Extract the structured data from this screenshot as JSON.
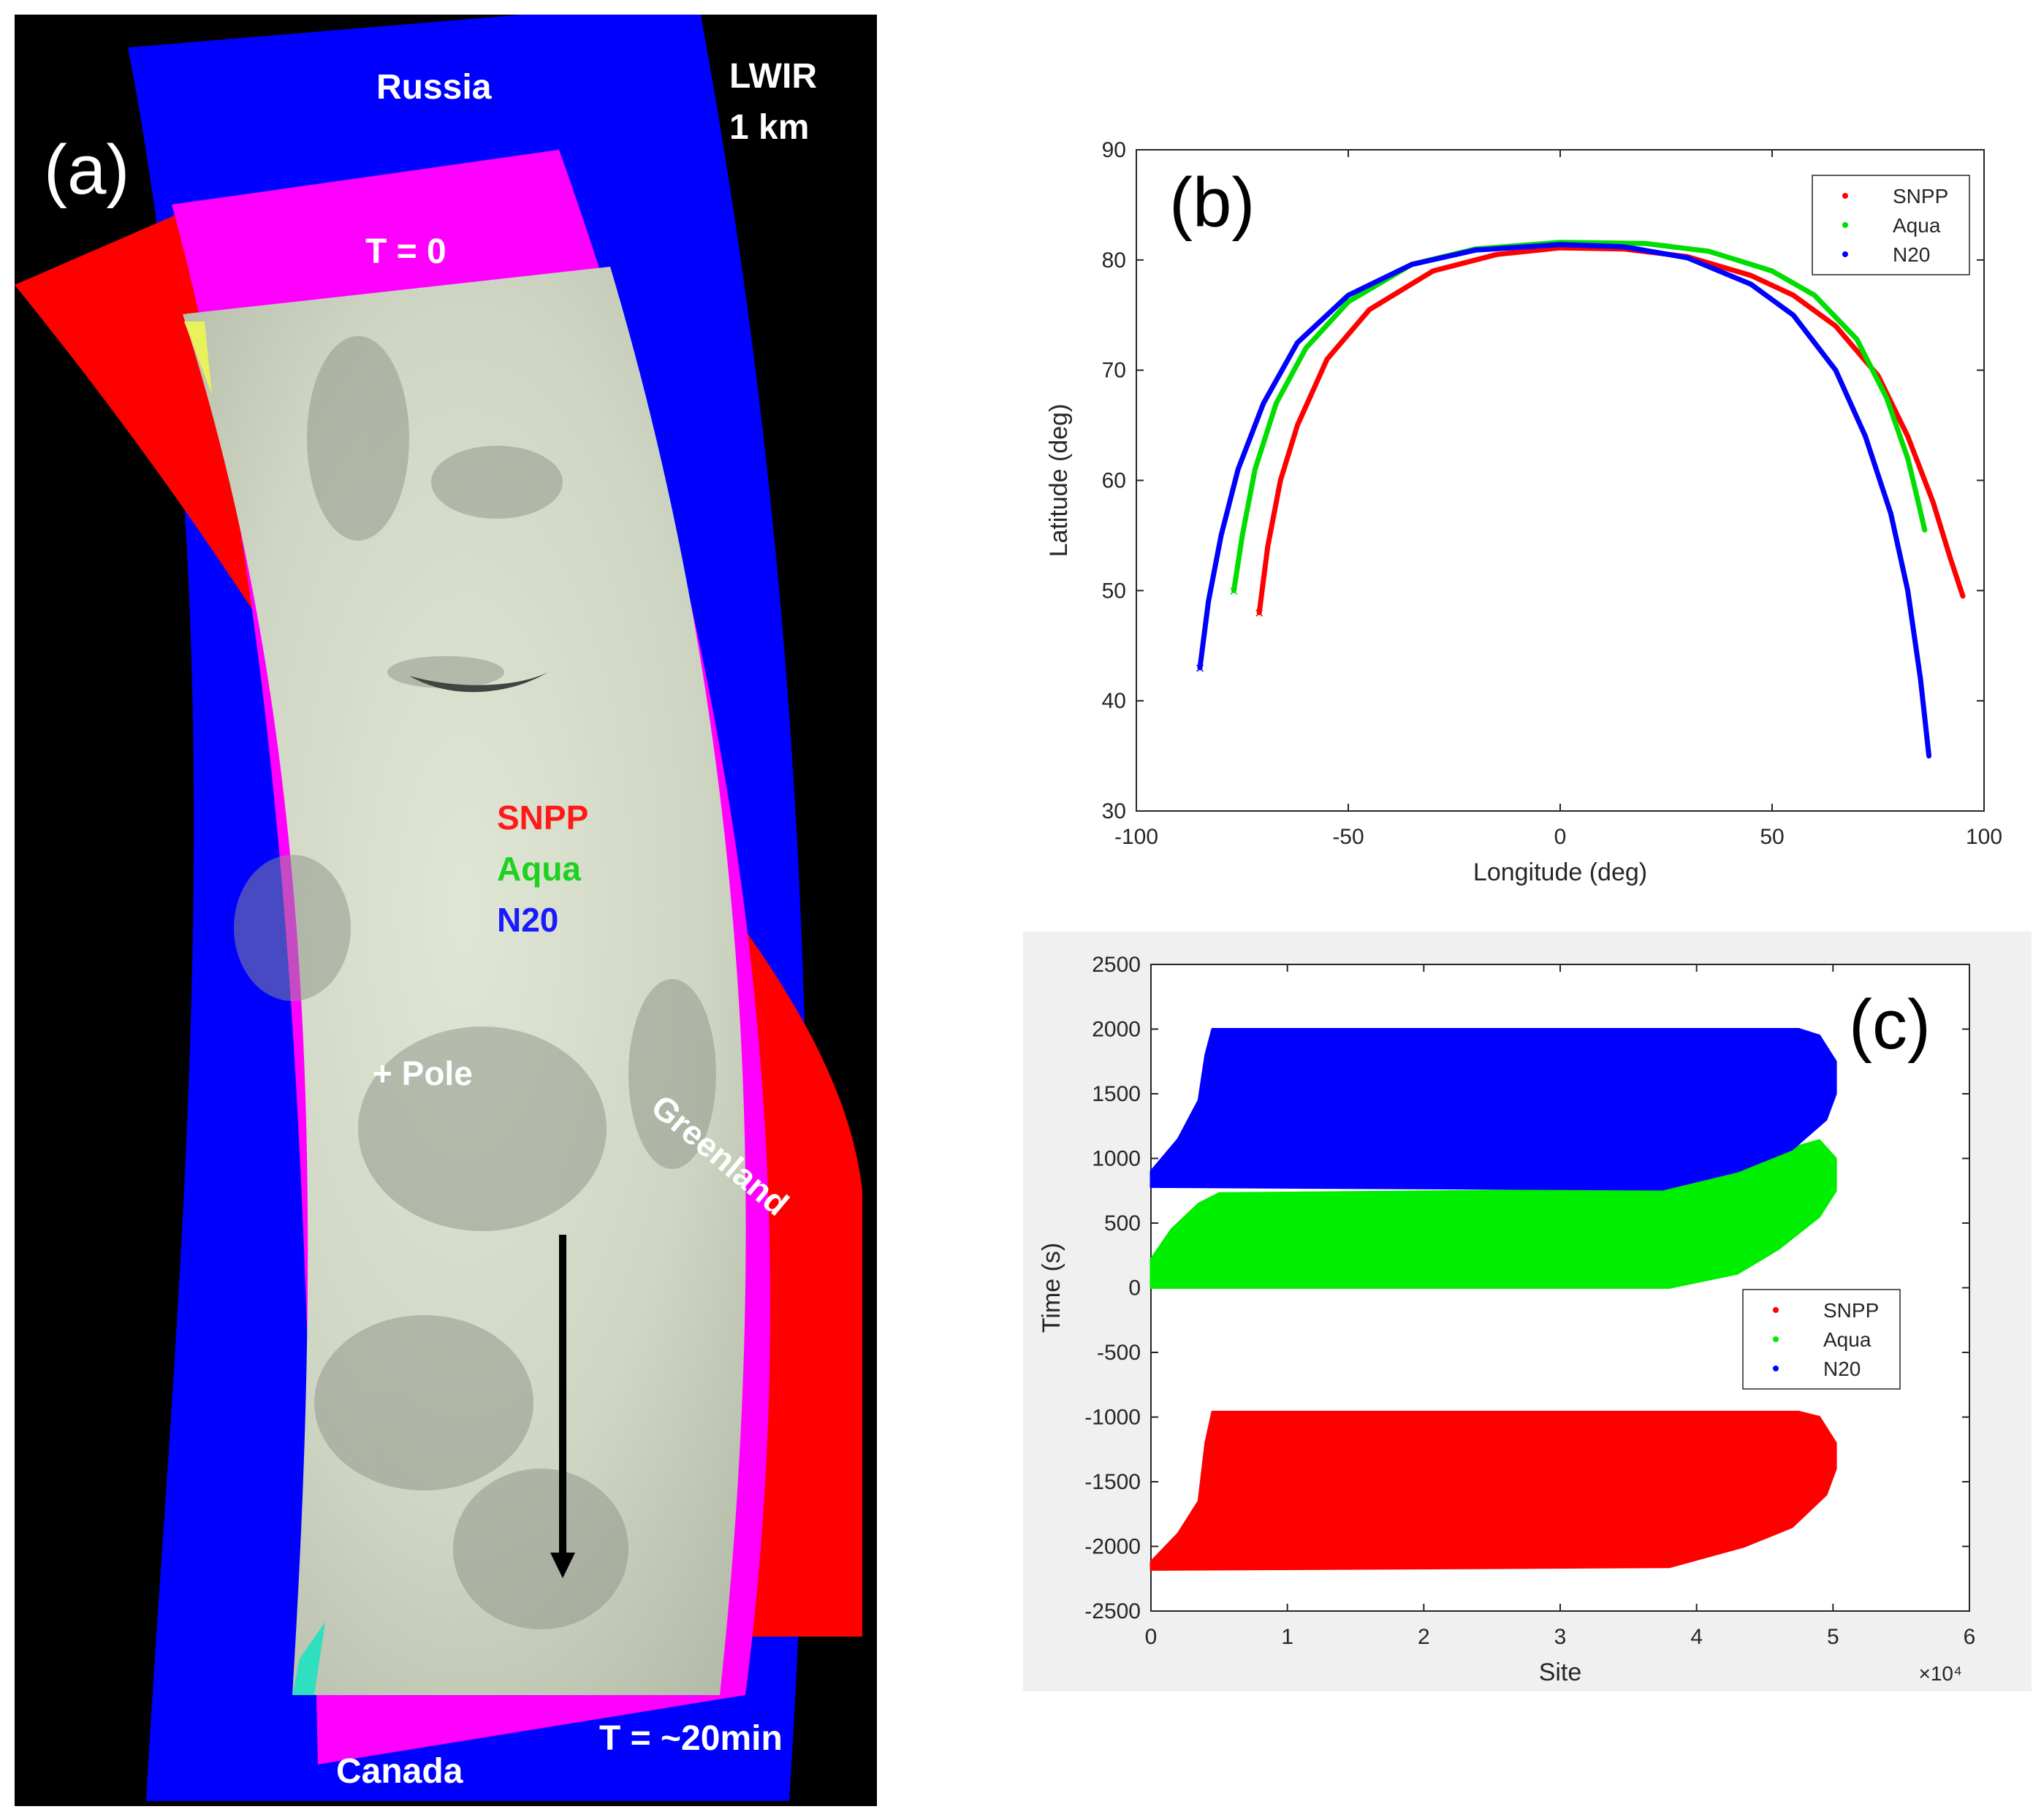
{
  "panel_a": {
    "panel_label": "(a)",
    "labels": {
      "russia": "Russia",
      "band_line1": "LWIR",
      "band_line2": "1 km",
      "t0": "T = 0",
      "pole": "+ Pole",
      "greenland": "Greenland",
      "canada": "Canada",
      "t_end": "T = ~20min"
    },
    "legend": [
      {
        "name": "SNPP",
        "color": "#ff1a1a"
      },
      {
        "name": "Aqua",
        "color": "#1fd11f"
      },
      {
        "name": "N20",
        "color": "#1a1aff"
      }
    ]
  },
  "chart_data": [
    {
      "id": "b",
      "panel_label": "(b)",
      "type": "line",
      "xlabel": "Longitude (deg)",
      "ylabel": "Latitude (deg)",
      "xlim": [
        -100,
        100
      ],
      "ylim": [
        30,
        90
      ],
      "xticks": [
        -100,
        -50,
        0,
        50,
        100
      ],
      "yticks": [
        30,
        40,
        50,
        60,
        70,
        80,
        90
      ],
      "legend_position": "top-right",
      "series": [
        {
          "name": "SNPP",
          "color": "#ff0000",
          "points": [
            [
              -71,
              48
            ],
            [
              -69,
              54
            ],
            [
              -66,
              60
            ],
            [
              -62,
              65
            ],
            [
              -55,
              71
            ],
            [
              -45,
              75.5
            ],
            [
              -30,
              79
            ],
            [
              -15,
              80.5
            ],
            [
              0,
              81.1
            ],
            [
              15,
              81
            ],
            [
              30,
              80.3
            ],
            [
              45,
              78.6
            ],
            [
              55,
              76.8
            ],
            [
              65,
              74
            ],
            [
              75,
              69.5
            ],
            [
              82,
              64
            ],
            [
              88,
              58
            ],
            [
              92,
              53
            ],
            [
              95,
              49.5
            ]
          ]
        },
        {
          "name": "Aqua",
          "color": "#00dd00",
          "points": [
            [
              -77,
              50
            ],
            [
              -75,
              55
            ],
            [
              -72,
              61
            ],
            [
              -67,
              67
            ],
            [
              -60,
              72
            ],
            [
              -50,
              76.2
            ],
            [
              -35,
              79.6
            ],
            [
              -20,
              81
            ],
            [
              0,
              81.6
            ],
            [
              20,
              81.5
            ],
            [
              35,
              80.8
            ],
            [
              50,
              79
            ],
            [
              60,
              76.8
            ],
            [
              70,
              72.8
            ],
            [
              77,
              67.5
            ],
            [
              82,
              62
            ],
            [
              84.5,
              58
            ],
            [
              86,
              55.5
            ]
          ]
        },
        {
          "name": "N20",
          "color": "#0000ff",
          "points": [
            [
              -85,
              43
            ],
            [
              -83,
              49
            ],
            [
              -80,
              55
            ],
            [
              -76,
              61
            ],
            [
              -70,
              67
            ],
            [
              -62,
              72.5
            ],
            [
              -50,
              76.8
            ],
            [
              -35,
              79.6
            ],
            [
              -20,
              80.9
            ],
            [
              0,
              81.4
            ],
            [
              15,
              81.2
            ],
            [
              30,
              80.2
            ],
            [
              45,
              77.8
            ],
            [
              55,
              75
            ],
            [
              65,
              70
            ],
            [
              72,
              64
            ],
            [
              78,
              57
            ],
            [
              82,
              50
            ],
            [
              85,
              42
            ],
            [
              87,
              35
            ]
          ]
        }
      ]
    },
    {
      "id": "c",
      "panel_label": "(c)",
      "type": "area",
      "xlabel": "Site",
      "ylabel": "Time (s)",
      "x_scale_note": "×10⁴",
      "xlim": [
        0,
        6
      ],
      "ylim": [
        -2500,
        2500
      ],
      "xticks": [
        0,
        1,
        2,
        3,
        4,
        5,
        6
      ],
      "yticks": [
        -2500,
        -2000,
        -1500,
        -1000,
        -500,
        0,
        500,
        1000,
        1500,
        2000,
        2500
      ],
      "legend_position": "center-right",
      "legend_order": [
        "SNPP",
        "Aqua",
        "N20"
      ],
      "series": [
        {
          "name": "SNPP",
          "color": "#ff0000",
          "outline": [
            [
              0,
              -2180
            ],
            [
              0,
              -2120
            ],
            [
              0.2,
              -1900
            ],
            [
              0.35,
              -1650
            ],
            [
              0.4,
              -1200
            ],
            [
              0.45,
              -960
            ],
            [
              4.75,
              -960
            ],
            [
              4.9,
              -1000
            ],
            [
              5.02,
              -1200
            ],
            [
              5.02,
              -1400
            ],
            [
              4.95,
              -1600
            ],
            [
              4.7,
              -1850
            ],
            [
              4.35,
              -2000
            ],
            [
              3.8,
              -2160
            ],
            [
              0,
              -2180
            ]
          ]
        },
        {
          "name": "Aqua",
          "color": "#00ee00",
          "outline": [
            [
              0,
              0
            ],
            [
              0,
              220
            ],
            [
              0.15,
              450
            ],
            [
              0.35,
              650
            ],
            [
              0.5,
              730
            ],
            [
              3.75,
              760
            ],
            [
              4.2,
              900
            ],
            [
              4.6,
              1050
            ],
            [
              4.9,
              1140
            ],
            [
              5.02,
              1000
            ],
            [
              5.02,
              750
            ],
            [
              4.9,
              550
            ],
            [
              4.6,
              300
            ],
            [
              4.3,
              110
            ],
            [
              3.8,
              0
            ],
            [
              0,
              0
            ]
          ]
        },
        {
          "name": "N20",
          "color": "#0000ff",
          "outline": [
            [
              0,
              780
            ],
            [
              0,
              900
            ],
            [
              0.2,
              1150
            ],
            [
              0.35,
              1450
            ],
            [
              0.4,
              1800
            ],
            [
              0.45,
              2000
            ],
            [
              4.75,
              2000
            ],
            [
              4.9,
              1950
            ],
            [
              5.02,
              1750
            ],
            [
              5.02,
              1500
            ],
            [
              4.95,
              1300
            ],
            [
              4.7,
              1070
            ],
            [
              4.3,
              900
            ],
            [
              3.75,
              760
            ],
            [
              0,
              780
            ]
          ]
        }
      ]
    }
  ]
}
